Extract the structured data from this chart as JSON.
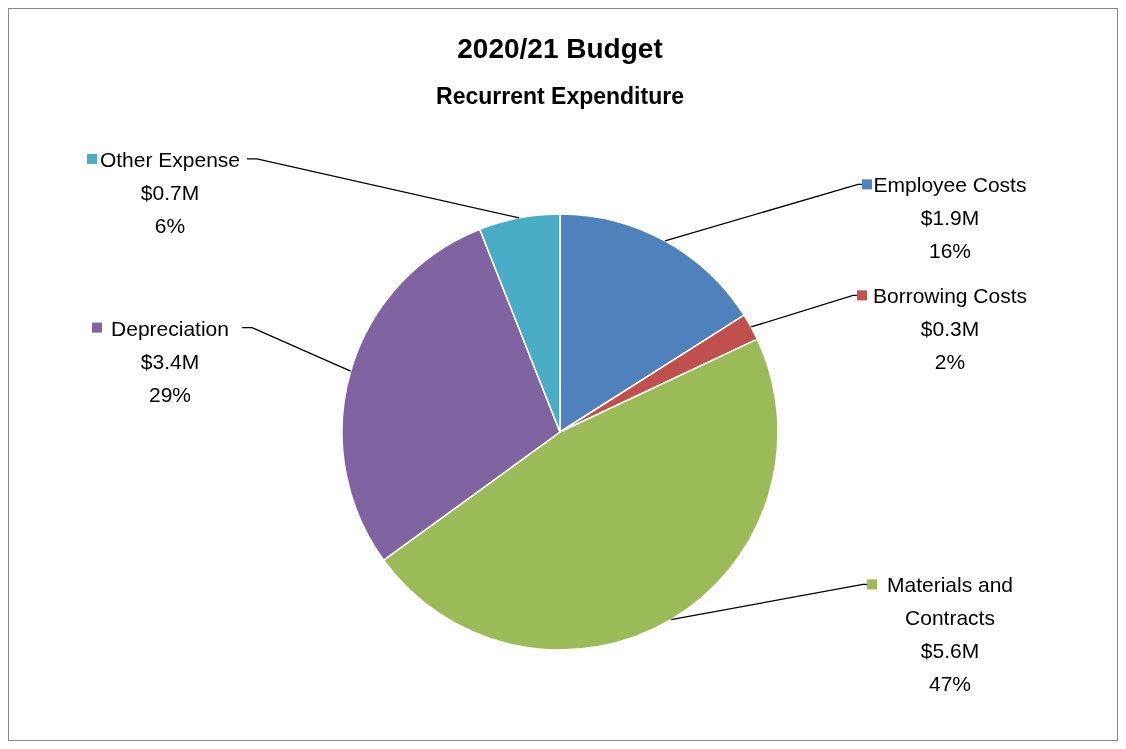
{
  "chart_data": {
    "type": "pie",
    "title": "2020/21 Budget",
    "subtitle": "Recurrent Expenditure",
    "categories": [
      "Employee Costs",
      "Borrowing Costs",
      "Materials and Contracts",
      "Depreciation",
      "Other Expense"
    ],
    "values": [
      16,
      2,
      47,
      29,
      6
    ],
    "colors": [
      "#4f81bd",
      "#c0504d",
      "#9bbb59",
      "#8064a2",
      "#4bacc6"
    ],
    "value_labels": [
      "$1.9M\n16%",
      "$0.3M\n2%",
      "$5.6M\n47%",
      "$3.4M\n29%",
      "$0.7M\n6%"
    ],
    "legend": "right"
  }
}
